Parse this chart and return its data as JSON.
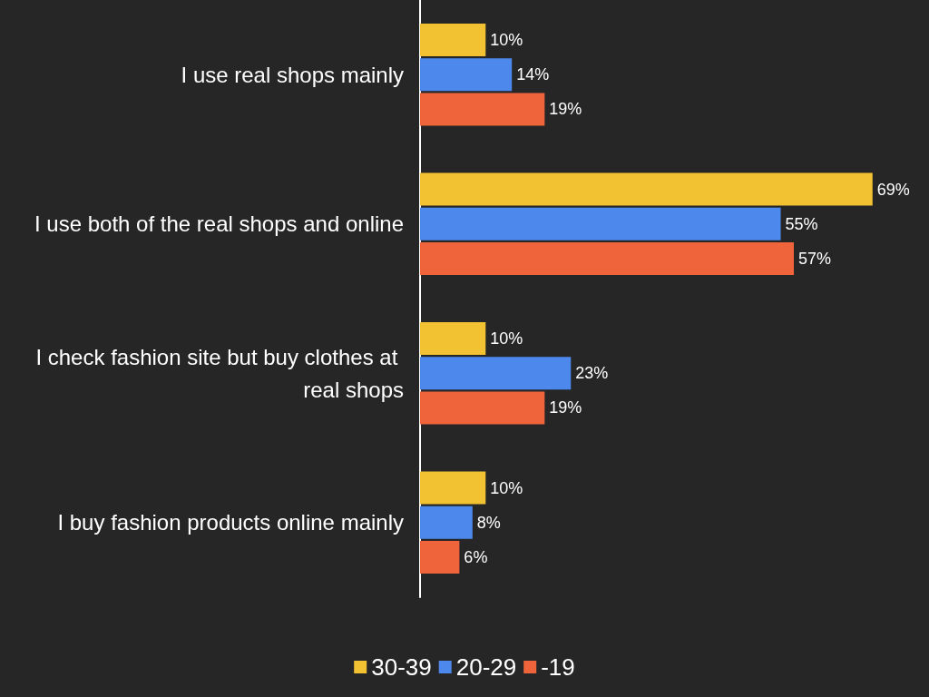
{
  "chart_data": {
    "type": "bar",
    "orientation": "horizontal",
    "categories": [
      "I use real shops mainly",
      "I use both of the real shops and online",
      "I check fashion site but buy clothes at real shops",
      "I buy fashion products online mainly"
    ],
    "series": [
      {
        "name": "30-39",
        "color": "#f2c232",
        "values": [
          10,
          69,
          10,
          10
        ],
        "value_labels": [
          "10%",
          "69%",
          "10%",
          "10%"
        ]
      },
      {
        "name": "20-29",
        "color": "#4d88ec",
        "values": [
          14,
          55,
          23,
          8
        ],
        "value_labels": [
          "14%",
          "55%",
          "23%",
          "8%"
        ]
      },
      {
        "name": "-19",
        "color": "#f0643c",
        "values": [
          19,
          57,
          19,
          6
        ],
        "value_labels": [
          "19%",
          "57%",
          "19%",
          "6%"
        ]
      }
    ],
    "tick_labels": "y",
    "grid": false,
    "legend": "bottom"
  }
}
